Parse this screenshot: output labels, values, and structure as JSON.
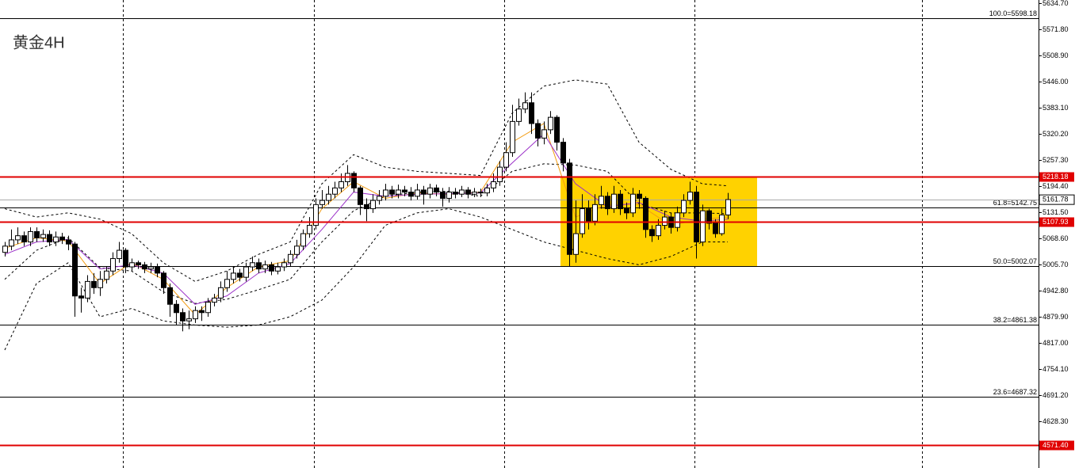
{
  "chart_data": {
    "type": "candlestick",
    "title": "黄金4H",
    "ylim": [
      4516,
      5642.3
    ],
    "yticks": [
      {
        "value": 5634.7,
        "label": "5634.70"
      },
      {
        "value": 5571.8,
        "label": "5571.80"
      },
      {
        "value": 5508.9,
        "label": "5508.90"
      },
      {
        "value": 5446.0,
        "label": "5446.00"
      },
      {
        "value": 5383.1,
        "label": "5383.10"
      },
      {
        "value": 5320.2,
        "label": "5320.20"
      },
      {
        "value": 5257.3,
        "label": "5257.30"
      },
      {
        "value": 5194.4,
        "label": "5194.40"
      },
      {
        "value": 5131.5,
        "label": "5131.50"
      },
      {
        "value": 5068.6,
        "label": "5068.60"
      },
      {
        "value": 5005.7,
        "label": "5005.70"
      },
      {
        "value": 4942.8,
        "label": "4942.80"
      },
      {
        "value": 4879.9,
        "label": "4879.90"
      },
      {
        "value": 4817.0,
        "label": "4817.00"
      },
      {
        "value": 4754.1,
        "label": "4754.10"
      },
      {
        "value": 4691.2,
        "label": "4691.20"
      },
      {
        "value": 4628.3,
        "label": "4628.30"
      }
    ],
    "bullish_color": "#ffffff",
    "bearish_color": "#000000",
    "candles": {
      "open": [
        5035,
        5050,
        5065,
        5075,
        5060,
        5085,
        5070,
        5078,
        5060,
        5072,
        5065,
        5055,
        4930,
        4925,
        4965,
        4950,
        4970,
        4990,
        5020,
        5040,
        5000,
        5010,
        5005,
        4995,
        5000,
        4985,
        4950,
        4910,
        4890,
        4870,
        4875,
        4895,
        4890,
        4915,
        4925,
        4950,
        4970,
        4985,
        4975,
        5000,
        5010,
        4995,
        5005,
        4990,
        5000,
        5010,
        5030,
        5050,
        5080,
        5100,
        5150,
        5160,
        5175,
        5190,
        5205,
        5225,
        5190,
        5150,
        5140,
        5160,
        5170,
        5185,
        5175,
        5185,
        5180,
        5170,
        5185,
        5175,
        5190,
        5180,
        5165,
        5180,
        5175,
        5185,
        5175,
        5180,
        5178,
        5190,
        5205,
        5240,
        5275,
        5350,
        5380,
        5395,
        5345,
        5310,
        5330,
        5360,
        5300,
        5250,
        5030,
        5080,
        5140,
        5110,
        5150,
        5170,
        5140,
        5175,
        5140,
        5130,
        5175,
        5165,
        5090,
        5075,
        5100,
        5120,
        5095,
        5130,
        5160,
        5180,
        5060,
        5135,
        5105,
        5080,
        5125
      ],
      "high": [
        5060,
        5090,
        5095,
        5085,
        5095,
        5095,
        5090,
        5088,
        5085,
        5082,
        5075,
        5060,
        4950,
        4980,
        4985,
        4990,
        5000,
        5035,
        5060,
        5045,
        5020,
        5015,
        5012,
        5010,
        5008,
        4990,
        4960,
        4920,
        4900,
        4895,
        4905,
        4905,
        4925,
        4935,
        4965,
        4990,
        5000,
        4995,
        5010,
        5025,
        5020,
        5015,
        5012,
        5010,
        5020,
        5040,
        5065,
        5090,
        5120,
        5165,
        5185,
        5195,
        5205,
        5225,
        5245,
        5230,
        5195,
        5165,
        5175,
        5185,
        5200,
        5195,
        5198,
        5195,
        5192,
        5200,
        5195,
        5200,
        5198,
        5190,
        5192,
        5190,
        5195,
        5192,
        5190,
        5188,
        5200,
        5225,
        5255,
        5300,
        5390,
        5405,
        5420,
        5420,
        5355,
        5350,
        5375,
        5365,
        5310,
        5260,
        5160,
        5175,
        5160,
        5175,
        5195,
        5180,
        5195,
        5185,
        5155,
        5190,
        5185,
        5170,
        5100,
        5115,
        5135,
        5130,
        5145,
        5175,
        5205,
        5195,
        5150,
        5140,
        5115,
        5140,
        5178
      ],
      "low": [
        5025,
        5040,
        5055,
        5050,
        5050,
        5060,
        5060,
        5050,
        5050,
        5055,
        5040,
        4880,
        4890,
        4915,
        4935,
        4930,
        4960,
        4980,
        5010,
        4985,
        4990,
        4995,
        4985,
        4985,
        4975,
        4935,
        4880,
        4860,
        4845,
        4850,
        4865,
        4870,
        4880,
        4905,
        4915,
        4940,
        4960,
        4965,
        4965,
        4990,
        4985,
        4985,
        4980,
        4982,
        4990,
        5000,
        5020,
        5040,
        5070,
        5090,
        5140,
        5150,
        5165,
        5180,
        5195,
        5180,
        5125,
        5110,
        5130,
        5150,
        5160,
        5165,
        5165,
        5170,
        5160,
        5162,
        5150,
        5165,
        5170,
        5145,
        5155,
        5165,
        5168,
        5165,
        5168,
        5168,
        5170,
        5180,
        5195,
        5230,
        5265,
        5340,
        5370,
        5320,
        5290,
        5295,
        5320,
        5280,
        5230,
        5000,
        5010,
        5070,
        5090,
        5100,
        5140,
        5125,
        5130,
        5125,
        5115,
        5120,
        5140,
        5070,
        5060,
        5065,
        5090,
        5080,
        5085,
        5120,
        5150,
        5020,
        5050,
        5090,
        5070,
        5075,
        5115
      ],
      "close": [
        5050,
        5065,
        5075,
        5060,
        5085,
        5070,
        5078,
        5060,
        5072,
        5065,
        5055,
        4930,
        4925,
        4965,
        4950,
        4970,
        4990,
        5020,
        5040,
        5000,
        5010,
        5005,
        4995,
        5000,
        4985,
        4950,
        4910,
        4890,
        4870,
        4875,
        4895,
        4890,
        4915,
        4925,
        4950,
        4970,
        4985,
        4975,
        5000,
        5010,
        4995,
        5005,
        4990,
        5000,
        5010,
        5030,
        5050,
        5080,
        5100,
        5150,
        5160,
        5175,
        5190,
        5205,
        5225,
        5190,
        5150,
        5140,
        5160,
        5170,
        5185,
        5175,
        5185,
        5180,
        5170,
        5185,
        5175,
        5190,
        5180,
        5165,
        5180,
        5175,
        5185,
        5175,
        5180,
        5178,
        5190,
        5205,
        5240,
        5275,
        5350,
        5380,
        5395,
        5345,
        5310,
        5330,
        5360,
        5300,
        5250,
        5030,
        5080,
        5140,
        5110,
        5150,
        5170,
        5140,
        5175,
        5140,
        5130,
        5175,
        5165,
        5090,
        5075,
        5100,
        5120,
        5095,
        5130,
        5160,
        5180,
        5060,
        5135,
        5105,
        5080,
        5125,
        5162
      ]
    },
    "lines": [
      {
        "color": "#000000",
        "style": "dashed",
        "x": [
          0,
          5,
          10,
          15,
          20,
          25,
          30,
          35,
          40,
          45,
          50,
          55,
          60,
          65,
          70,
          75,
          80,
          85,
          90,
          95,
          100,
          105,
          110,
          114
        ],
        "values": [
          5140,
          5120,
          5130,
          5115,
          5080,
          5010,
          4965,
          4990,
          5030,
          5060,
          5200,
          5270,
          5240,
          5230,
          5225,
          5220,
          5370,
          5435,
          5450,
          5440,
          5300,
          5235,
          5200,
          5195
        ]
      },
      {
        "color": "#000000",
        "style": "dashed",
        "x": [
          0,
          5,
          10,
          15,
          20,
          25,
          30,
          35,
          40,
          45,
          50,
          55,
          60,
          65,
          70,
          75,
          80,
          85,
          90,
          95,
          100,
          105,
          110,
          114
        ],
        "values": [
          4970,
          5040,
          5070,
          4998,
          4990,
          4940,
          4912,
          4922,
          4945,
          4970,
          5060,
          5135,
          5170,
          5180,
          5182,
          5170,
          5230,
          5248,
          5245,
          5230,
          5152,
          5130,
          5130,
          5128
        ]
      },
      {
        "color": "#000000",
        "style": "dashed",
        "x": [
          0,
          5,
          10,
          15,
          20,
          25,
          30,
          35,
          40,
          45,
          50,
          55,
          60,
          65,
          70,
          75,
          80,
          85,
          90,
          95,
          100,
          105,
          110,
          114
        ],
        "values": [
          4800,
          4960,
          5010,
          4880,
          4900,
          4870,
          4860,
          4855,
          4860,
          4880,
          4920,
          5000,
          5100,
          5130,
          5140,
          5120,
          5090,
          5060,
          5040,
          5020,
          5005,
          5025,
          5060,
          5060
        ]
      },
      {
        "color": "#f39c12",
        "style": "solid",
        "x": [
          0,
          5,
          10,
          15,
          20,
          25,
          30,
          35,
          40,
          45,
          50,
          55,
          60,
          65,
          70,
          75,
          80,
          85,
          90,
          95,
          100,
          105,
          110,
          114
        ],
        "values": [
          5045,
          5070,
          5062,
          4960,
          5010,
          4970,
          4885,
          4950,
          5000,
          5015,
          5140,
          5205,
          5165,
          5178,
          5175,
          5180,
          5300,
          5345,
          5120,
          5150,
          5150,
          5100,
          5115,
          5120
        ]
      },
      {
        "color": "#9b30c8",
        "style": "solid",
        "x": [
          0,
          5,
          10,
          15,
          20,
          25,
          30,
          35,
          40,
          45,
          50,
          55,
          60,
          65,
          70,
          75,
          80,
          85,
          90,
          95,
          100,
          105,
          110,
          114
        ],
        "values": [
          5030,
          5060,
          5066,
          4995,
          5005,
          4985,
          4910,
          4930,
          4985,
          5008,
          5090,
          5180,
          5170,
          5175,
          5176,
          5178,
          5250,
          5320,
          5200,
          5145,
          5155,
          5120,
          5110,
          5115
        ]
      }
    ],
    "zone": {
      "from": 5000,
      "to": 5218.18,
      "color": "#ffd200"
    },
    "fib_levels": [
      {
        "value": 5598.18,
        "label": "100.0=5598.18"
      },
      {
        "value": 5142.75,
        "label": "61.8=5142.75"
      },
      {
        "value": 5002.07,
        "label": "50.0=5002.07"
      },
      {
        "value": 4861.38,
        "label": "38.2=4861.38"
      },
      {
        "value": 4687.32,
        "label": "23.6=4687.32"
      }
    ],
    "key_levels": [
      {
        "value": 5218.18,
        "color": "#e00000"
      },
      {
        "value": 5107.93,
        "color": "#e00000"
      },
      {
        "value": 4571.4,
        "label": "4571.40",
        "color": "#e00000"
      }
    ],
    "current_price": 5161.78
  }
}
